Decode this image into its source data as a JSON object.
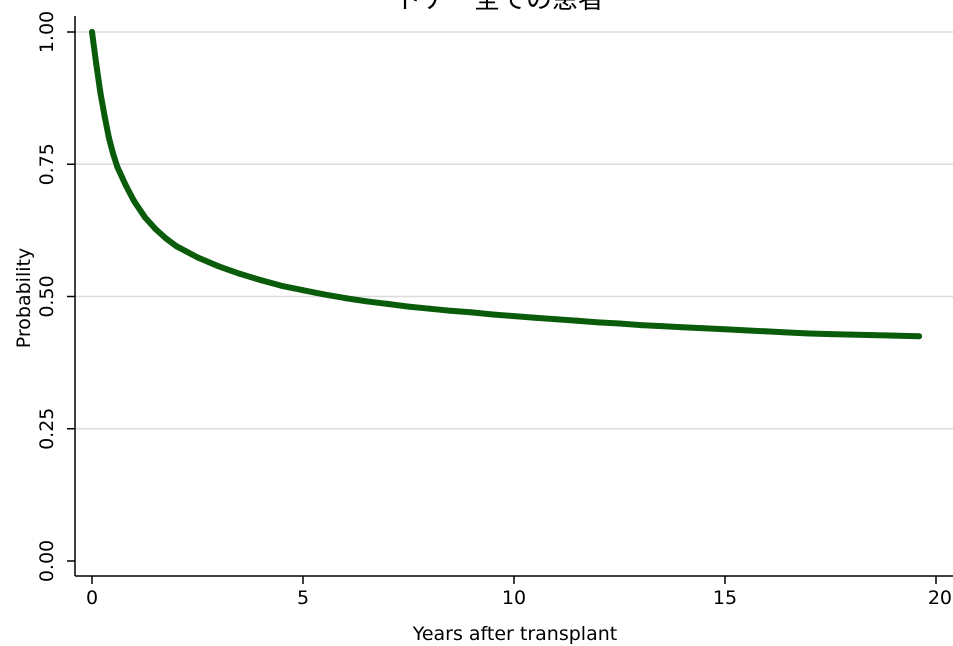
{
  "chart_data": {
    "type": "line",
    "title": "ドナー全ての患者",
    "xlabel": "Years after transplant",
    "ylabel": "Probability",
    "xlim": [
      0,
      20
    ],
    "ylim": [
      0,
      1
    ],
    "x_ticks": [
      {
        "value": 0,
        "label": "0"
      },
      {
        "value": 5,
        "label": "5"
      },
      {
        "value": 10,
        "label": "10"
      },
      {
        "value": 15,
        "label": "15"
      },
      {
        "value": 20,
        "label": "20"
      }
    ],
    "y_ticks": [
      {
        "value": 0,
        "label": "0.00"
      },
      {
        "value": 0.25,
        "label": "0.25"
      },
      {
        "value": 0.5,
        "label": "0.50"
      },
      {
        "value": 0.75,
        "label": "0.75"
      },
      {
        "value": 1,
        "label": "1.00"
      }
    ],
    "grid": "horizontal",
    "color": "#0a5c0a",
    "series": [
      {
        "x": [
          0,
          0.1,
          0.2,
          0.3,
          0.4,
          0.5,
          0.6,
          0.8,
          1.0,
          1.25,
          1.5,
          1.75,
          2.0,
          2.5,
          3.0,
          3.5,
          4.0,
          4.5,
          5.0,
          5.5,
          6.0,
          6.5,
          7.0,
          7.5,
          8.0,
          8.5,
          9.0,
          9.5,
          10.0,
          10.5,
          11.0,
          11.5,
          12.0,
          12.5,
          13.0,
          13.5,
          14.0,
          14.5,
          15.0,
          15.5,
          16.0,
          16.5,
          17.0,
          17.5,
          18.0,
          18.5,
          19.0,
          19.6
        ],
        "y": [
          1.0,
          0.94,
          0.885,
          0.84,
          0.8,
          0.77,
          0.745,
          0.71,
          0.68,
          0.65,
          0.628,
          0.61,
          0.595,
          0.574,
          0.557,
          0.543,
          0.531,
          0.52,
          0.512,
          0.504,
          0.497,
          0.491,
          0.486,
          0.481,
          0.477,
          0.473,
          0.47,
          0.466,
          0.463,
          0.46,
          0.457,
          0.454,
          0.451,
          0.449,
          0.446,
          0.444,
          0.442,
          0.44,
          0.438,
          0.436,
          0.434,
          0.432,
          0.43,
          0.429,
          0.428,
          0.427,
          0.426,
          0.425
        ]
      }
    ]
  }
}
